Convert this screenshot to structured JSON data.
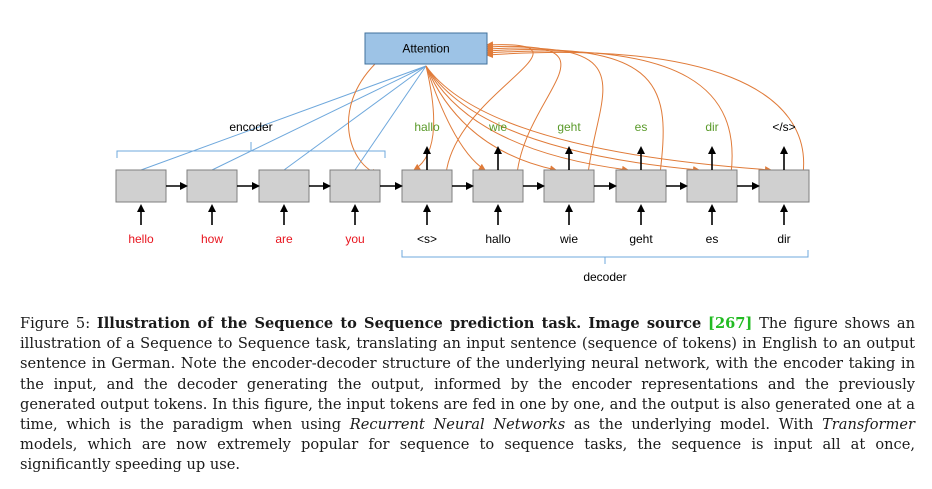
{
  "figure": {
    "attention_label": "Attention",
    "encoder_label": "encoder",
    "decoder_label": "decoder",
    "encoder_inputs": [
      "hello",
      "how",
      "are",
      "you"
    ],
    "decoder_inputs": [
      "<s>",
      "hallo",
      "wie",
      "geht",
      "es",
      "dir"
    ],
    "decoder_outputs": [
      "hallo",
      "wie",
      "geht",
      "es",
      "dir",
      "</s>"
    ],
    "colors": {
      "encoder_input_text": "#e8141e",
      "decoder_output_text": "#5a9a2a",
      "eos_text": "#000000",
      "attention_fill": "#9dc3e6",
      "attention_stroke": "#41719c",
      "cell_fill": "#d0d0d0",
      "encoder_attention_lines": "#6fa8dc",
      "decoder_attention_lines": "#e07b39"
    }
  },
  "caption": {
    "figure_label": "Figure 5:",
    "title": "Illustration of the Sequence to Sequence prediction task. Image source",
    "ref_open": "[",
    "ref_number": "267",
    "ref_close": "]",
    "text_1": " The figure shows an illustration of a Sequence to Sequence task, translating an input sentence (sequence of tokens) in English to an output sentence in German. Note the encoder-decoder structure of the underlying neural network, with the encoder taking in the input, and the decoder generating the output, informed by the encoder representations and the previously generated output tokens. In this figure, the input tokens are fed in one by one, and the output is also generated one at a time, which is the paradigm when using ",
    "rnn": "Recurrent Neural Networks",
    "text_2": " as the underlying model. With ",
    "transformer": "Transformer",
    "text_3": " models, which are now extremely popular for sequence to sequence tasks, the sequence is input all at once, significantly speeding up use."
  }
}
